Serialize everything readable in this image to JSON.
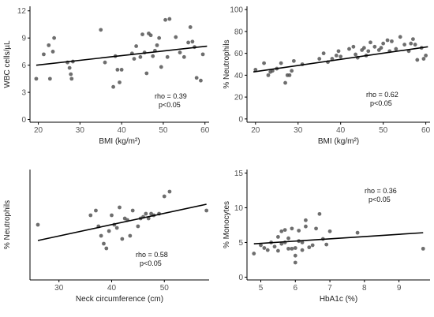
{
  "chart_data": [
    {
      "type": "scatter",
      "xlabel": "BMI (kg/m²)",
      "ylabel": "WBC cells/µL",
      "xlim": [
        18,
        61
      ],
      "ylim": [
        -0.3,
        12.5
      ],
      "xticks": [
        20,
        30,
        40,
        50,
        60
      ],
      "yticks": [
        0,
        3,
        6,
        9,
        12
      ],
      "annotation": [
        "rho = 0.39",
        "p<0.05"
      ],
      "fit": {
        "x": [
          19.5,
          60.5
        ],
        "y": [
          6.0,
          8.1
        ]
      },
      "x": [
        19.5,
        21.3,
        22.5,
        22.8,
        23.5,
        23.8,
        27,
        27.5,
        27.8,
        28,
        28.3,
        35,
        36,
        38,
        38.5,
        39,
        39.5,
        40,
        42.5,
        43,
        43.5,
        44.5,
        45,
        45.5,
        46,
        46.5,
        47,
        47.5,
        48,
        48.5,
        49,
        49.5,
        50.5,
        51,
        51.5,
        53,
        54,
        55,
        56,
        56.5,
        57,
        57.5,
        58,
        59,
        59.5
      ],
      "y": [
        4.5,
        7.2,
        8.2,
        4.5,
        7.5,
        9.0,
        6.3,
        5.7,
        5.0,
        4.5,
        6.4,
        9.9,
        6.3,
        3.6,
        7.0,
        5.5,
        4.1,
        5.5,
        7.3,
        6.7,
        8.1,
        6.9,
        9.4,
        7.4,
        5.1,
        9.5,
        9.3,
        7.0,
        7.6,
        8.2,
        9.0,
        5.8,
        11.0,
        6.9,
        11.1,
        9.1,
        7.4,
        6.9,
        8.5,
        10.2,
        8.6,
        8.0,
        4.6,
        4.3,
        7.2
      ]
    },
    {
      "type": "scatter",
      "xlabel": "BMI (kg/m²)",
      "ylabel": "% Neutrophils",
      "xlim": [
        18,
        61
      ],
      "ylim": [
        -3,
        103
      ],
      "xticks": [
        20,
        30,
        40,
        50,
        60
      ],
      "yticks": [
        0,
        20,
        40,
        60,
        80,
        100
      ],
      "annotation": [
        "rho = 0.62",
        "p<0.05"
      ],
      "fit": {
        "x": [
          19.5,
          60.5
        ],
        "y": [
          43,
          66
        ]
      },
      "x": [
        20,
        22,
        23,
        23.5,
        24,
        25,
        26,
        27,
        27.5,
        28,
        28.5,
        29,
        31,
        35,
        36,
        37,
        38,
        39,
        39.5,
        40,
        42,
        43,
        43.5,
        44,
        45,
        45.5,
        46,
        46.5,
        47,
        48,
        49,
        49.5,
        50,
        51,
        51.5,
        52,
        53,
        54,
        55,
        56,
        56.5,
        57,
        57.5,
        58,
        59,
        59.5,
        60
      ],
      "y": [
        45,
        51,
        40,
        43,
        44,
        46,
        51,
        33,
        40,
        40,
        44,
        53,
        50,
        55,
        60,
        52,
        55,
        58,
        62,
        57,
        64,
        66,
        59,
        56,
        63,
        65,
        58,
        62,
        70,
        66,
        63,
        65,
        69,
        72,
        62,
        71,
        64,
        75,
        68,
        62,
        69,
        73,
        68,
        54,
        65,
        55,
        58
      ]
    },
    {
      "type": "scatter",
      "xlabel": "Neck circumference (cm)",
      "ylabel": "% Neutrophils",
      "xlim": [
        24.5,
        58.5
      ],
      "ylim": [
        22,
        92
      ],
      "xticks": [
        30,
        40,
        50
      ],
      "yticks": [],
      "annotation": [
        "rho = 0.58",
        "p<0.05"
      ],
      "fit": {
        "x": [
          26,
          58
        ],
        "y": [
          47,
          70
        ]
      },
      "x": [
        26,
        36,
        37,
        37.5,
        38,
        38.5,
        39,
        39.5,
        40,
        40.5,
        41,
        41.5,
        42,
        42.5,
        43,
        43.5,
        44,
        45,
        45.5,
        46,
        46.5,
        47,
        47.5,
        48,
        49,
        50,
        51,
        58
      ],
      "y": [
        57,
        63,
        66,
        56,
        50,
        45,
        42,
        53,
        63,
        57,
        55,
        68,
        48,
        61,
        60,
        50,
        66,
        56,
        61,
        62,
        64,
        61,
        64,
        63,
        64,
        75,
        78,
        66
      ]
    },
    {
      "type": "scatter",
      "xlabel": "HbA1c (%)",
      "ylabel": "% Monocytes",
      "xlim": [
        4.6,
        9.9
      ],
      "ylim": [
        -0.4,
        15.5
      ],
      "xticks": [
        5,
        6,
        7,
        8,
        9
      ],
      "yticks": [
        0,
        5,
        10,
        15
      ],
      "annotation": [
        "rho = 0.36",
        "p<0.05"
      ],
      "fit": {
        "x": [
          4.8,
          9.7
        ],
        "y": [
          4.8,
          6.4
        ]
      },
      "x": [
        4.8,
        5.0,
        5.1,
        5.2,
        5.3,
        5.4,
        5.5,
        5.5,
        5.6,
        5.6,
        5.7,
        5.7,
        5.8,
        5.8,
        5.9,
        5.9,
        6.0,
        6.0,
        6.0,
        6.1,
        6.1,
        6.2,
        6.2,
        6.3,
        6.3,
        6.4,
        6.5,
        6.6,
        6.7,
        6.8,
        6.9,
        7.0,
        7.8,
        9.7
      ],
      "y": [
        3.4,
        4.6,
        4.2,
        3.9,
        5.0,
        4.4,
        5.8,
        3.8,
        6.6,
        4.8,
        5.0,
        6.8,
        5.6,
        4.1,
        4.1,
        7.0,
        2.1,
        3.1,
        4.2,
        5.2,
        6.7,
        5.0,
        3.9,
        7.3,
        8.2,
        4.3,
        4.6,
        7.0,
        9.1,
        5.5,
        4.7,
        6.6,
        6.4,
        4.1
      ]
    }
  ]
}
